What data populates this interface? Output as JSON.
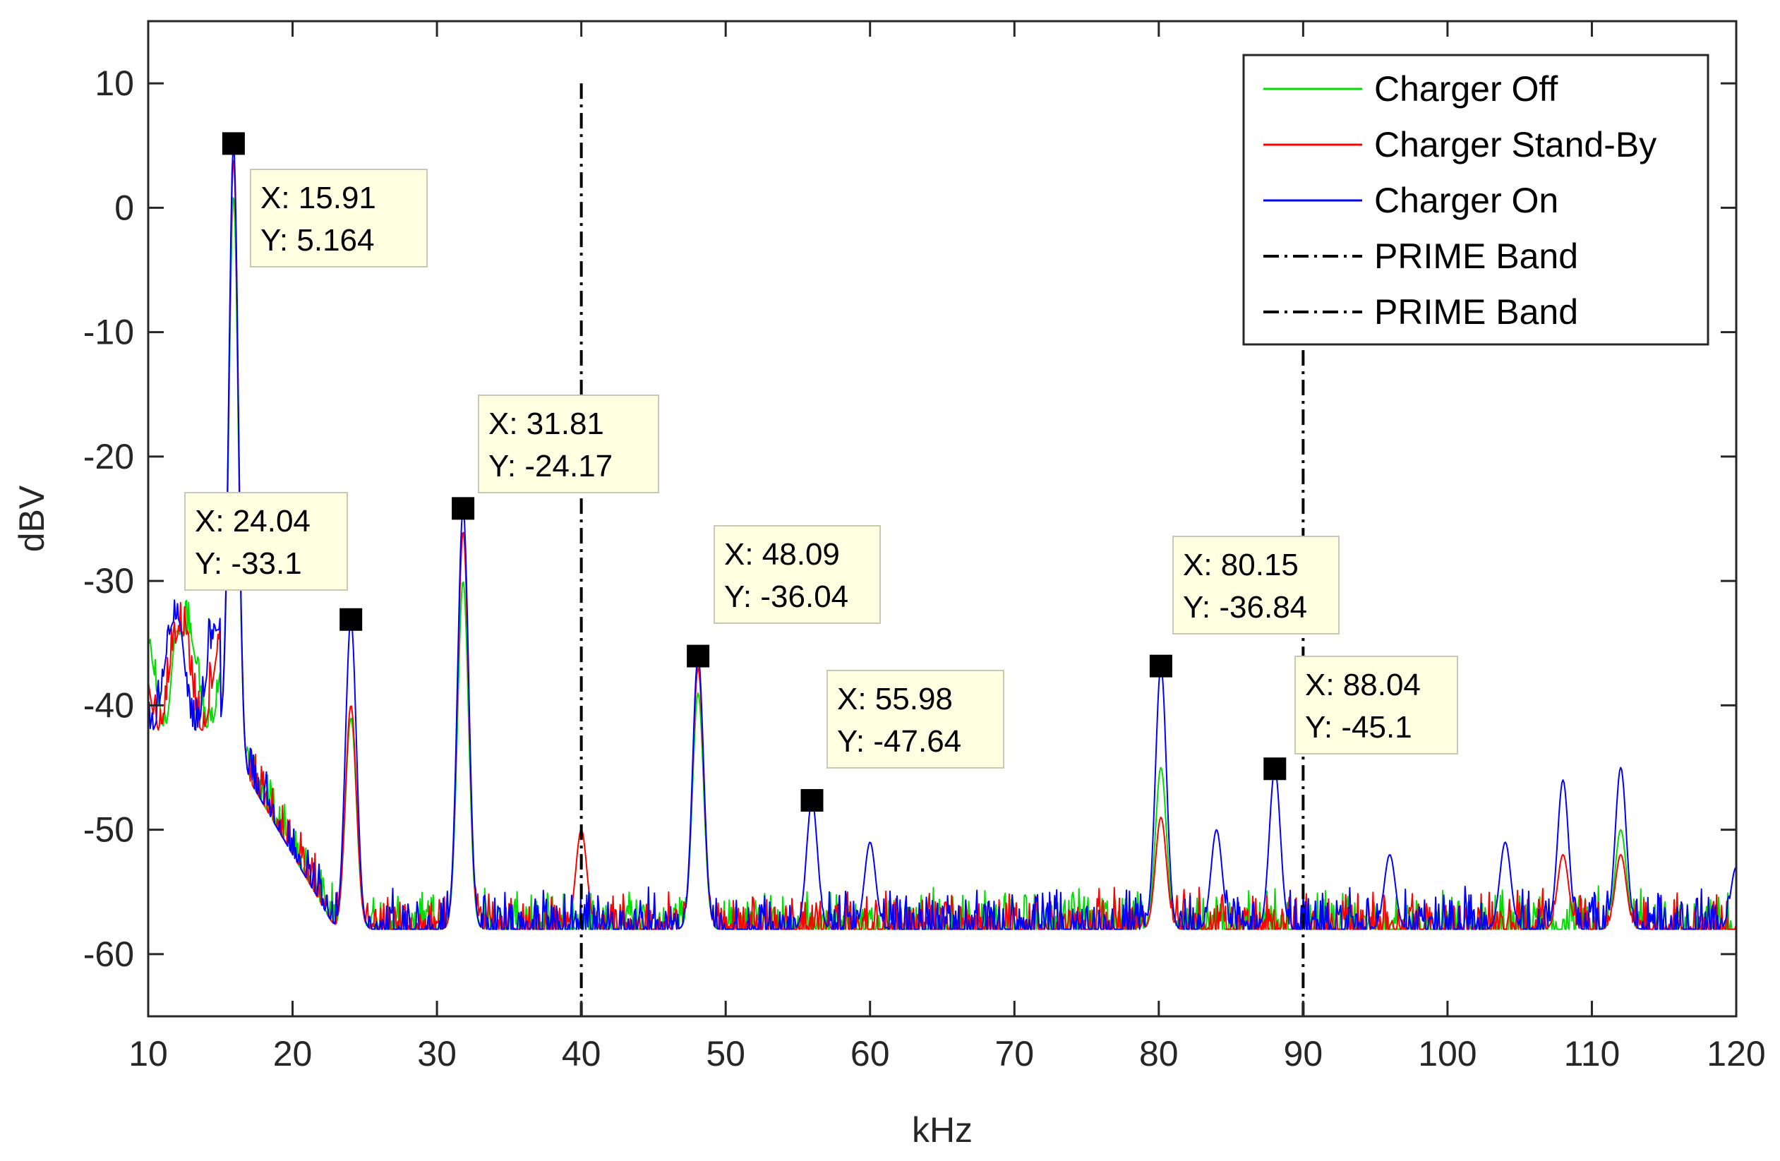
{
  "chart_data": {
    "type": "line",
    "title": "",
    "xlabel": "kHz",
    "ylabel": "dBV",
    "xlim": [
      10,
      120
    ],
    "ylim": [
      -65,
      15
    ],
    "xticks": [
      "10",
      "20",
      "30",
      "40",
      "50",
      "60",
      "70",
      "80",
      "90",
      "100",
      "110",
      "120"
    ],
    "yticks": [
      "10",
      "0",
      "-10",
      "-20",
      "-30",
      "-40",
      "-50",
      "-60"
    ],
    "noise_floor_dbv": -58,
    "series": [
      {
        "name": "Charger Off",
        "color": "#00dd00",
        "peaks": [
          [
            12,
            -34
          ],
          [
            15.91,
            1
          ],
          [
            24.04,
            -41
          ],
          [
            31.81,
            -30
          ],
          [
            48.09,
            -39
          ],
          [
            80.15,
            -45
          ],
          [
            112,
            -50
          ]
        ]
      },
      {
        "name": "Charger Stand-By",
        "color": "#ff0000",
        "peaks": [
          [
            12,
            -35
          ],
          [
            15.91,
            4
          ],
          [
            24.04,
            -40
          ],
          [
            31.81,
            -26
          ],
          [
            40,
            -50
          ],
          [
            48.09,
            -37
          ],
          [
            80.15,
            -49
          ],
          [
            108,
            -52
          ],
          [
            112,
            -52
          ]
        ]
      },
      {
        "name": "Charger On",
        "color": "#0000ff",
        "peaks": [
          [
            12,
            -33
          ],
          [
            15.91,
            5.164
          ],
          [
            24.04,
            -33.1
          ],
          [
            31.81,
            -24.17
          ],
          [
            48.09,
            -36.04
          ],
          [
            55.98,
            -47.64
          ],
          [
            60,
            -51
          ],
          [
            80.15,
            -36.84
          ],
          [
            84,
            -50
          ],
          [
            88.04,
            -45.1
          ],
          [
            96,
            -52
          ],
          [
            104,
            -51
          ],
          [
            108,
            -46
          ],
          [
            112,
            -45
          ],
          [
            120,
            -53
          ]
        ]
      }
    ],
    "vlines": [
      {
        "name": "PRIME Band",
        "x": 40,
        "y_top": 10
      },
      {
        "name": "PRIME Band",
        "x": 90,
        "y_top": 10
      }
    ],
    "markers": [
      {
        "x": 15.91,
        "y": 5.164,
        "label_x": "X: 15.91",
        "label_y": "Y: 5.164"
      },
      {
        "x": 24.04,
        "y": -33.1,
        "label_x": "X: 24.04",
        "label_y": "Y: -33.1"
      },
      {
        "x": 31.81,
        "y": -24.17,
        "label_x": "X: 31.81",
        "label_y": "Y: -24.17"
      },
      {
        "x": 48.09,
        "y": -36.04,
        "label_x": "X: 48.09",
        "label_y": "Y: -36.04"
      },
      {
        "x": 55.98,
        "y": -47.64,
        "label_x": "X: 55.98",
        "label_y": "Y: -47.64"
      },
      {
        "x": 80.15,
        "y": -36.84,
        "label_x": "X: 80.15",
        "label_y": "Y: -36.84"
      },
      {
        "x": 88.04,
        "y": -45.1,
        "label_x": "X: 88.04",
        "label_y": "Y: -45.1"
      }
    ],
    "legend": {
      "placement": "top-right",
      "entries": [
        "Charger Off",
        "Charger Stand-By",
        "Charger On",
        "PRIME Band",
        "PRIME Band"
      ]
    }
  }
}
